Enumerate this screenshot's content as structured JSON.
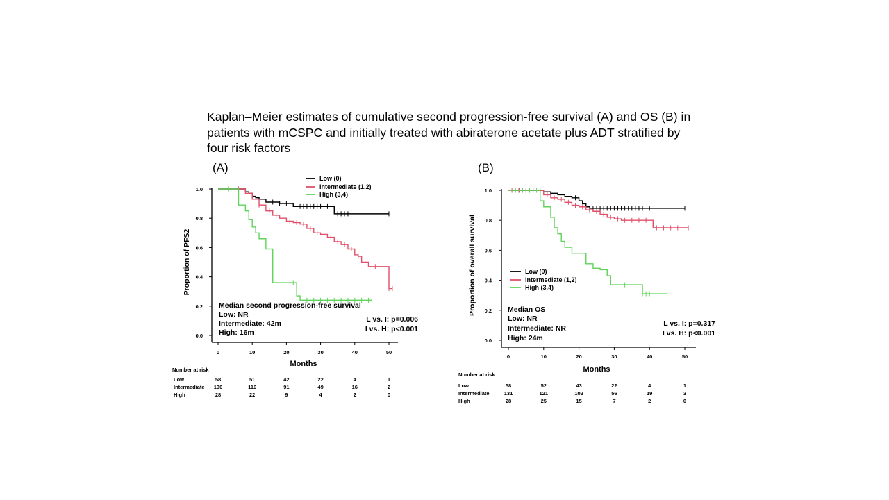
{
  "caption": {
    "line1": "Kaplan–Meier estimates of cumulative second progression-free survival (A) and OS (B) in",
    "line2": "patients with mCSPC and initially treated with abiraterone acetate plus ADT stratified by",
    "line3": "four risk factors"
  },
  "colors": {
    "low": "#000000",
    "intermediate": "#e0506a",
    "high": "#5fd35a"
  },
  "chart_data": [
    {
      "type": "line",
      "panel_label": "(A)",
      "ylabel": "Proportion of PFS2",
      "xlabel": "Months",
      "xlim": [
        0,
        52
      ],
      "ylim": [
        0,
        1.0
      ],
      "xticks": [
        "0",
        "10",
        "20",
        "30",
        "40",
        "50"
      ],
      "yticks": [
        "0.0",
        "0.2",
        "0.4",
        "0.6",
        "0.8",
        "1.0"
      ],
      "legend": [
        "Low (0)",
        "Intermediate (1,2)",
        "High (3,4)"
      ],
      "legend_position": "top-right",
      "series": [
        {
          "name": "Low (0)",
          "color": "#000000",
          "x": [
            0,
            6,
            8,
            9,
            10,
            11,
            12,
            14,
            16,
            18,
            20,
            22,
            26,
            30,
            33,
            34,
            36,
            40,
            50
          ],
          "y": [
            1.0,
            1.0,
            0.98,
            0.97,
            0.95,
            0.94,
            0.93,
            0.91,
            0.91,
            0.9,
            0.9,
            0.88,
            0.88,
            0.88,
            0.88,
            0.83,
            0.83,
            0.83,
            0.83
          ],
          "censor_x": [
            16,
            18,
            20,
            24,
            25,
            26,
            27,
            28,
            29,
            30,
            31,
            32,
            35,
            36,
            37,
            38,
            50
          ]
        },
        {
          "name": "Intermediate (1,2)",
          "color": "#e0506a",
          "x": [
            0,
            6,
            8,
            10,
            12,
            14,
            16,
            18,
            20,
            22,
            24,
            26,
            28,
            30,
            32,
            34,
            36,
            38,
            40,
            41,
            42,
            44,
            46,
            49,
            50,
            51
          ],
          "y": [
            1.0,
            1.0,
            0.97,
            0.93,
            0.89,
            0.85,
            0.82,
            0.8,
            0.78,
            0.77,
            0.76,
            0.73,
            0.7,
            0.69,
            0.67,
            0.64,
            0.62,
            0.59,
            0.55,
            0.54,
            0.5,
            0.47,
            0.47,
            0.47,
            0.32,
            0.32
          ],
          "censor_x": [
            6,
            12,
            15,
            17,
            19,
            21,
            23,
            25,
            27,
            29,
            31,
            33,
            35,
            37,
            39,
            41,
            43,
            46,
            50,
            51
          ]
        },
        {
          "name": "High (3,4)",
          "color": "#5fd35a",
          "x": [
            0,
            3,
            6,
            8,
            9,
            10,
            11,
            12,
            14,
            16,
            20,
            21,
            22,
            23,
            24,
            26,
            28,
            30,
            35,
            40,
            45
          ],
          "y": [
            1.0,
            1.0,
            0.89,
            0.85,
            0.79,
            0.74,
            0.7,
            0.66,
            0.59,
            0.36,
            0.36,
            0.36,
            0.36,
            0.27,
            0.24,
            0.24,
            0.24,
            0.24,
            0.24,
            0.24,
            0.24
          ],
          "censor_x": [
            3,
            22,
            26,
            28,
            30,
            32,
            34,
            36,
            38,
            40,
            42,
            44,
            45
          ]
        }
      ],
      "annotations": {
        "median_title": "Median second progression-free survival",
        "median_low": "Low: NR",
        "median_int": "Intermediate: 42m",
        "median_high": "High: 16m",
        "p1": "L vs. I: p=0.006",
        "p2": "I vs. H: p<0.001"
      },
      "risk_table": {
        "title": "Number at risk",
        "rows": [
          {
            "label": "Low",
            "values": [
              "58",
              "51",
              "42",
              "22",
              "4",
              "1"
            ]
          },
          {
            "label": "Intermediate",
            "values": [
              "130",
              "119",
              "91",
              "49",
              "16",
              "2"
            ]
          },
          {
            "label": "High",
            "values": [
              "28",
              "22",
              "9",
              "4",
              "2",
              "0"
            ]
          }
        ]
      }
    },
    {
      "type": "line",
      "panel_label": "(B)",
      "ylabel": "Proportion of overall survival",
      "xlabel": "Months",
      "xlim": [
        0,
        52
      ],
      "ylim": [
        0,
        1.0
      ],
      "xticks": [
        "0",
        "10",
        "20",
        "30",
        "40",
        "50"
      ],
      "yticks": [
        "0.0",
        "0.2",
        "0.4",
        "0.6",
        "0.8",
        "1.0"
      ],
      "legend": [
        "Low (0)",
        "Intermediate (1,2)",
        "High (3,4)"
      ],
      "legend_position": "center-left",
      "series": [
        {
          "name": "Low (0)",
          "color": "#000000",
          "x": [
            0,
            8,
            10,
            12,
            14,
            16,
            18,
            20,
            21,
            22,
            23,
            50
          ],
          "y": [
            1.0,
            1.0,
            0.99,
            0.98,
            0.97,
            0.96,
            0.95,
            0.93,
            0.91,
            0.89,
            0.88,
            0.88
          ],
          "censor_x": [
            3,
            5,
            7,
            19,
            23,
            24,
            25,
            26,
            27,
            28,
            29,
            30,
            31,
            32,
            33,
            34,
            35,
            36,
            37,
            38,
            40,
            50
          ]
        },
        {
          "name": "Intermediate (1,2)",
          "color": "#e0506a",
          "x": [
            0,
            8,
            10,
            12,
            14,
            16,
            18,
            20,
            22,
            24,
            26,
            28,
            30,
            32,
            40,
            41,
            51
          ],
          "y": [
            1.0,
            1.0,
            0.97,
            0.95,
            0.94,
            0.92,
            0.9,
            0.89,
            0.87,
            0.86,
            0.84,
            0.82,
            0.81,
            0.8,
            0.8,
            0.75,
            0.75
          ],
          "censor_x": [
            1,
            2,
            3,
            4,
            5,
            6,
            7,
            9,
            11,
            13,
            15,
            17,
            19,
            21,
            23,
            25,
            27,
            29,
            31,
            33,
            35,
            37,
            39,
            42,
            44,
            46,
            48,
            51
          ]
        },
        {
          "name": "High (3,4)",
          "color": "#5fd35a",
          "x": [
            0,
            8,
            9,
            10,
            12,
            13,
            14,
            15,
            16,
            18,
            20,
            22,
            24,
            26,
            28,
            29,
            32,
            36,
            38,
            45
          ],
          "y": [
            1.0,
            1.0,
            0.93,
            0.89,
            0.82,
            0.75,
            0.71,
            0.66,
            0.62,
            0.58,
            0.58,
            0.51,
            0.48,
            0.47,
            0.43,
            0.37,
            0.37,
            0.37,
            0.31,
            0.31
          ],
          "censor_x": [
            2,
            4,
            6,
            8,
            33,
            38,
            39,
            40,
            45
          ]
        }
      ],
      "annotations": {
        "median_title": "Median OS",
        "median_low": "Low: NR",
        "median_int": "Intermediate: NR",
        "median_high": "High: 24m",
        "p1": "L vs. I: p=0.317",
        "p2": "I vs. H: p<0.001"
      },
      "risk_table": {
        "title": "Number at risk",
        "rows": [
          {
            "label": "Low",
            "values": [
              "58",
              "52",
              "43",
              "22",
              "4",
              "1"
            ]
          },
          {
            "label": "Intermediate",
            "values": [
              "131",
              "121",
              "102",
              "56",
              "19",
              "3"
            ]
          },
          {
            "label": "High",
            "values": [
              "28",
              "25",
              "15",
              "7",
              "2",
              "0"
            ]
          }
        ]
      }
    }
  ]
}
